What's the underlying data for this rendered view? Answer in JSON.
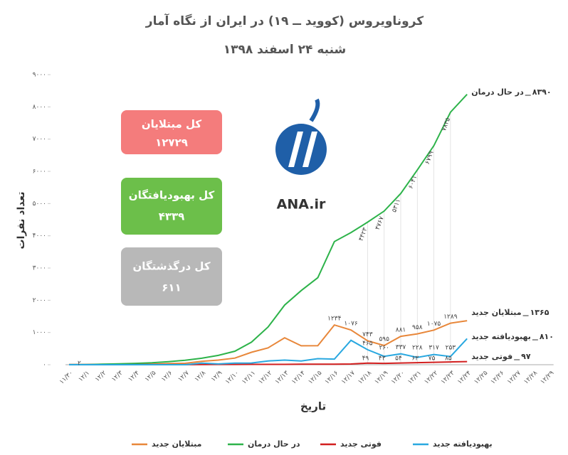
{
  "chart_data": {
    "type": "line",
    "title": "کرونا‌ویروس (کووید ــ ۱۹) در ایران از نگاه آمار",
    "subtitle": "شنبه ۲۴ اسفند ۱۳۹۸",
    "x_label": "تاریخ",
    "y_label": "تعداد نفرات",
    "categories": [
      "۱۱/۳۰",
      "۱۲/۱",
      "۱۲/۲",
      "۱۲/۳",
      "۱۲/۴",
      "۱۲/۵",
      "۱۲/۶",
      "۱۲/۷",
      "۱۲/۸",
      "۱۲/۹",
      "۱۲/۱۰",
      "۱۲/۱۱",
      "۱۲/۱۲",
      "۱۲/۱۳",
      "۱۲/۱۴",
      "۱۲/۱۵",
      "۱۲/۱۶",
      "۱۲/۱۷",
      "۱۲/۱۸",
      "۱۲/۱۹",
      "۱۲/۲۰",
      "۱۲/۲۱",
      "۱۲/۲۲",
      "۱۲/۲۳",
      "۱۲/۲۴",
      "۱۲/۲۵",
      "۱۲/۲۶",
      "۱۲/۲۷",
      "۱۲/۲۸",
      "۱۲/۲۹"
    ],
    "ylim": [
      0,
      9000
    ],
    "yticks": [
      {
        "value": 0,
        "label": "۰"
      },
      {
        "value": 1000,
        "label": "۱۰۰۰"
      },
      {
        "value": 2000,
        "label": "۲۰۰۰"
      },
      {
        "value": 3000,
        "label": "۳۰۰۰"
      },
      {
        "value": 4000,
        "label": "۴۰۰۰"
      },
      {
        "value": 5000,
        "label": "۵۰۰۰"
      },
      {
        "value": 6000,
        "label": "۶۰۰۰"
      },
      {
        "value": 7000,
        "label": "۷۰۰۰"
      },
      {
        "value": 8000,
        "label": "۸۰۰۰"
      },
      {
        "value": 9000,
        "label": "۹۰۰۰"
      }
    ],
    "grid": false,
    "series": [
      {
        "name": "مبتلایان جدید",
        "color": "#e8873a",
        "values": [
          2,
          3,
          13,
          10,
          15,
          18,
          34,
          44,
          106,
          143,
          205,
          385,
          523,
          835,
          586,
          591,
          1234,
          1076,
          743,
          595,
          881,
          958,
          1075,
          1289,
          1365,
          null,
          null,
          null,
          null,
          null
        ],
        "value_labels": [
          null,
          null,
          null,
          null,
          null,
          null,
          null,
          null,
          null,
          null,
          null,
          null,
          null,
          null,
          null,
          null,
          "۱۲۳۴",
          "۱۰۷۶",
          "۷۴۳",
          "۵۹۵",
          "۸۸۱",
          "۹۵۸",
          "۱۰۷۵",
          "۱۲۸۹",
          "۱۳۶۵",
          null,
          null,
          null,
          null,
          null
        ]
      },
      {
        "name": "در حال درمان",
        "color": "#2db34a",
        "values": [
          2,
          5,
          18,
          28,
          43,
          61,
          95,
          139,
          200,
          290,
          420,
          700,
          1170,
          1850,
          2300,
          2700,
          3820,
          4100,
          4423,
          4767,
          5311,
          6041,
          6799,
          7835,
          8390,
          null,
          null,
          null,
          null,
          null
        ],
        "value_labels": [
          "۲",
          null,
          null,
          null,
          null,
          null,
          null,
          null,
          null,
          null,
          null,
          null,
          null,
          null,
          null,
          null,
          null,
          null,
          "۴۴۲۳",
          "۴۷۶۷",
          "۵۳۱۱",
          "۶۰۴۱",
          "۶۷۹۹",
          "۷۸۳۵",
          "۸۳۹۰",
          null,
          null,
          null,
          null,
          null
        ]
      },
      {
        "name": "فوتی جدید",
        "color": "#d21f1f",
        "values": [
          2,
          2,
          0,
          1,
          3,
          4,
          4,
          3,
          7,
          8,
          9,
          11,
          12,
          11,
          15,
          15,
          17,
          21,
          49,
          43,
          54,
          63,
          75,
          85,
          97,
          null,
          null,
          null,
          null,
          null
        ],
        "value_labels": [
          null,
          null,
          null,
          null,
          null,
          null,
          null,
          null,
          null,
          null,
          null,
          null,
          null,
          null,
          null,
          null,
          null,
          null,
          "۴۹",
          "۴۳",
          "۵۴",
          "۶۳",
          "۷۵",
          "۸۵",
          "۹۷",
          null,
          null,
          null,
          null,
          null
        ]
      },
      {
        "name": "بهبودیافته جدید",
        "color": "#29a8e0",
        "values": [
          0,
          0,
          0,
          0,
          0,
          0,
          0,
          0,
          49,
          24,
          50,
          52,
          116,
          144,
          117,
          187,
          174,
          756,
          465,
          260,
          337,
          228,
          317,
          253,
          810,
          null,
          null,
          null,
          null,
          null
        ],
        "value_labels": [
          null,
          null,
          null,
          null,
          null,
          null,
          null,
          null,
          null,
          null,
          null,
          null,
          null,
          null,
          null,
          null,
          null,
          null,
          "۴۶۵",
          "۲۶۰",
          "۳۳۷",
          "۲۲۸",
          "۳۱۷",
          "۲۵۳",
          "۸۱۰",
          null,
          null,
          null,
          null,
          null
        ]
      }
    ]
  },
  "summary": [
    {
      "label": "کل مبتلایان",
      "value": "۱۲۷۲۹"
    },
    {
      "label": "کل بهبودیافتگان",
      "value": "۴۳۳۹"
    },
    {
      "label": "کل درگذشتگان",
      "value": "۶۱۱"
    }
  ],
  "logo": {
    "text": "ANA.ir"
  }
}
